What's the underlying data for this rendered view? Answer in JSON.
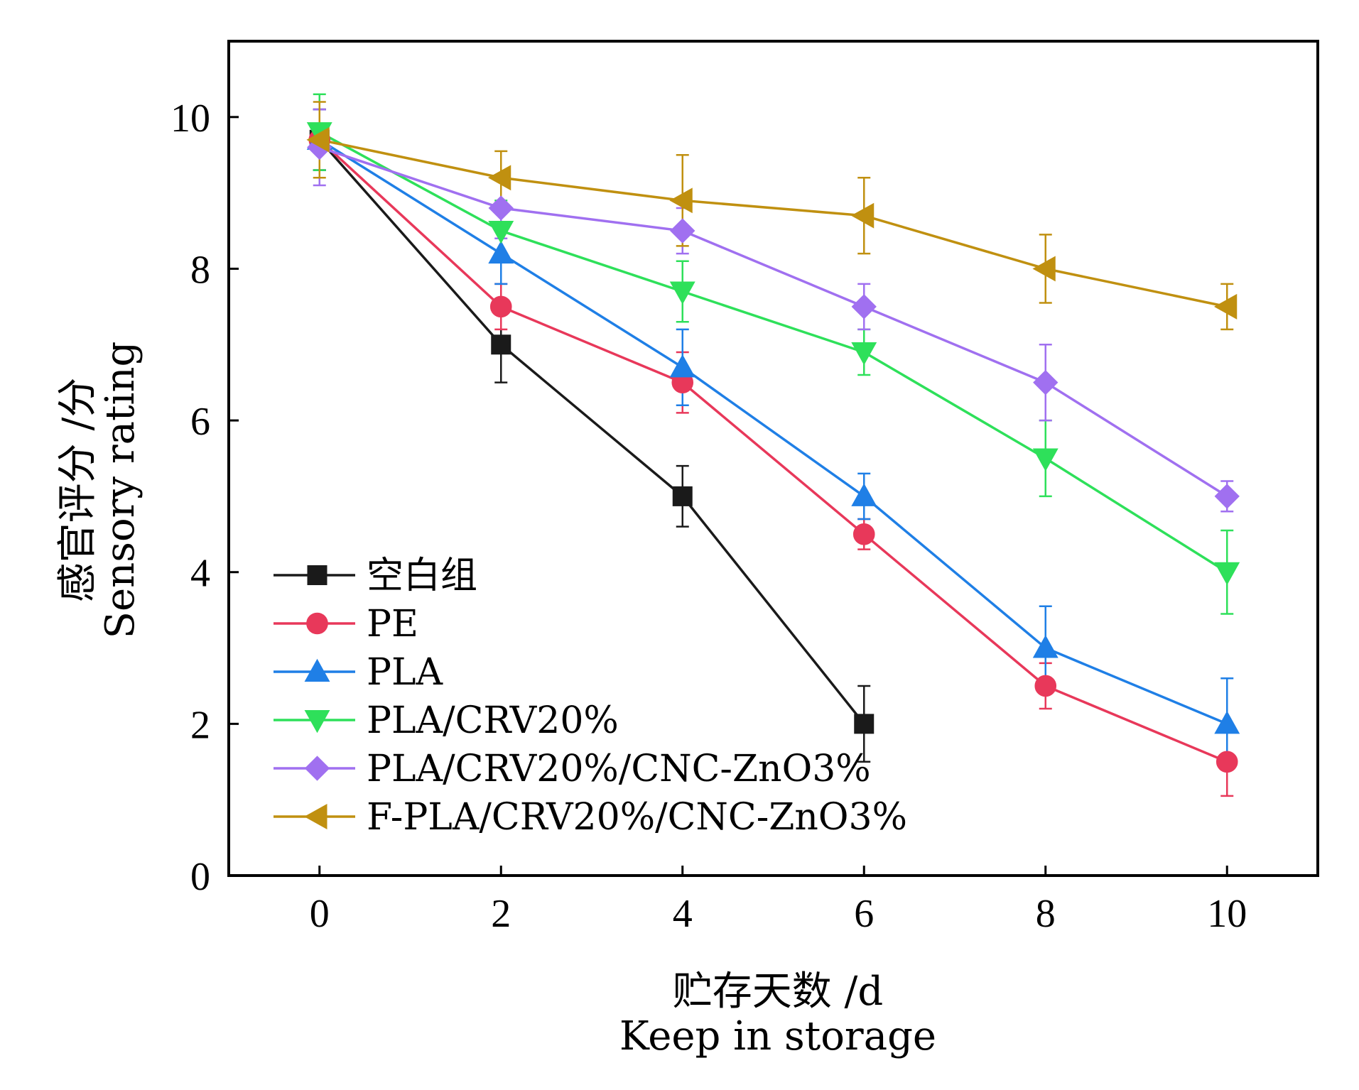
{
  "chart_data": {
    "type": "line",
    "xlabel": [
      "贮存天数 /d",
      "Keep in storage"
    ],
    "ylabel": [
      "感官评分 /分",
      "Sensory rating"
    ],
    "xlim": [
      -1,
      11
    ],
    "ylim": [
      0,
      11
    ],
    "x_ticks": [
      0,
      2,
      4,
      6,
      8,
      10
    ],
    "y_ticks": [
      0,
      2,
      4,
      6,
      8,
      10
    ],
    "legend_position": "lower-left",
    "error_bars": true,
    "series": [
      {
        "name": "空白组",
        "color": "#1a1a1a",
        "marker": "square",
        "x": [
          0,
          2,
          4,
          6
        ],
        "y": [
          9.7,
          7.0,
          5.0,
          2.0
        ],
        "err": [
          0.4,
          0.5,
          0.4,
          0.5
        ]
      },
      {
        "name": "PE",
        "color": "#e8385a",
        "marker": "circle",
        "x": [
          0,
          2,
          4,
          6,
          8,
          10
        ],
        "y": [
          9.7,
          7.5,
          6.5,
          4.5,
          2.5,
          1.5
        ],
        "err": [
          0.4,
          0.3,
          0.4,
          0.2,
          0.3,
          0.45
        ]
      },
      {
        "name": "PLA",
        "color": "#1f7fe6",
        "marker": "triangle-up",
        "x": [
          0,
          2,
          4,
          6,
          8,
          10
        ],
        "y": [
          9.7,
          8.2,
          6.7,
          5.0,
          3.0,
          2.0
        ],
        "err": [
          0.4,
          0.4,
          0.5,
          0.3,
          0.55,
          0.6
        ]
      },
      {
        "name": "PLA/CRV20%",
        "color": "#2ee05a",
        "marker": "triangle-down",
        "x": [
          0,
          2,
          4,
          6,
          8,
          10
        ],
        "y": [
          9.8,
          8.5,
          7.7,
          6.9,
          5.5,
          4.0
        ],
        "err": [
          0.5,
          0.4,
          0.4,
          0.3,
          0.5,
          0.55
        ]
      },
      {
        "name": "PLA/CRV20%/CNC-ZnO3%",
        "color": "#a070f0",
        "marker": "diamond",
        "x": [
          0,
          2,
          4,
          6,
          8,
          10
        ],
        "y": [
          9.6,
          8.8,
          8.5,
          7.5,
          6.5,
          5.0
        ],
        "err": [
          0.5,
          0.4,
          0.3,
          0.3,
          0.5,
          0.2
        ]
      },
      {
        "name": "F-PLA/CRV20%/CNC-ZnO3%",
        "color": "#c09010",
        "marker": "triangle-left",
        "x": [
          0,
          2,
          4,
          6,
          8,
          10
        ],
        "y": [
          9.7,
          9.2,
          8.9,
          8.7,
          8.0,
          7.5
        ],
        "err": [
          0.5,
          0.35,
          0.6,
          0.5,
          0.45,
          0.3
        ]
      }
    ]
  }
}
